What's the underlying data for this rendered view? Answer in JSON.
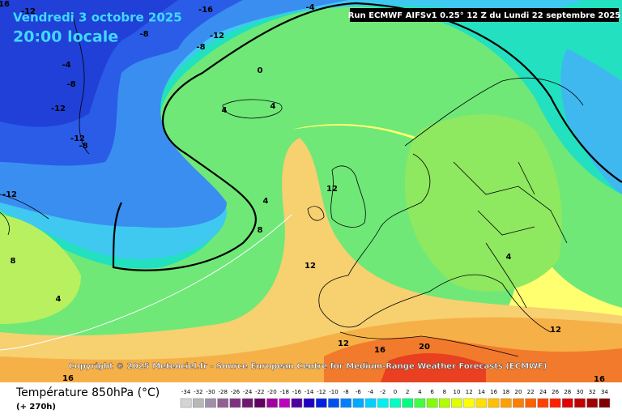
{
  "header": {
    "date": "Vendredi 3 octobre 2025",
    "time": "20:00 locale",
    "run": "Run ECMWF AIFSv1 0.25° 12 Z du Lundi 22 septembre 2025"
  },
  "copyright": "Copyright © 2025 Meteociel.fr - Source European Centre for Medium-Range Weather Forecasts (ECMWF)",
  "footer": {
    "title": "Température 850hPa (°C)",
    "lead": "(+ 270h)"
  },
  "contour_labels": [
    16,
    -12,
    -16,
    -12,
    -8,
    -8,
    -4,
    -4,
    -8,
    -12,
    -12,
    -8,
    -12,
    0,
    4,
    4,
    4,
    8,
    12,
    12,
    8,
    4,
    4,
    12,
    12,
    16,
    20,
    16,
    16
  ],
  "legend": {
    "values": [
      -34,
      -32,
      -30,
      -28,
      -26,
      -24,
      -22,
      -20,
      -18,
      -16,
      -14,
      -12,
      -10,
      -8,
      -6,
      -4,
      -2,
      0,
      2,
      4,
      6,
      8,
      10,
      12,
      14,
      16,
      18,
      20,
      22,
      24,
      26,
      28,
      30,
      32,
      34
    ],
    "colors": [
      "#d4d4d4",
      "#b8b8b8",
      "#a090a8",
      "#906090",
      "#803080",
      "#701870",
      "#600060",
      "#a000a0",
      "#c000c0",
      "#5000a0",
      "#2000c0",
      "#0020e0",
      "#0050f0",
      "#0080ff",
      "#00a8ff",
      "#00d0ff",
      "#00f0f0",
      "#00ffc0",
      "#00ff80",
      "#40ff40",
      "#80ff00",
      "#b0ff00",
      "#e0ff00",
      "#ffff00",
      "#ffe000",
      "#ffc000",
      "#ffa000",
      "#ff8000",
      "#ff6000",
      "#ff4000",
      "#ff2000",
      "#e00000",
      "#c00000",
      "#a00000",
      "#800000"
    ]
  }
}
